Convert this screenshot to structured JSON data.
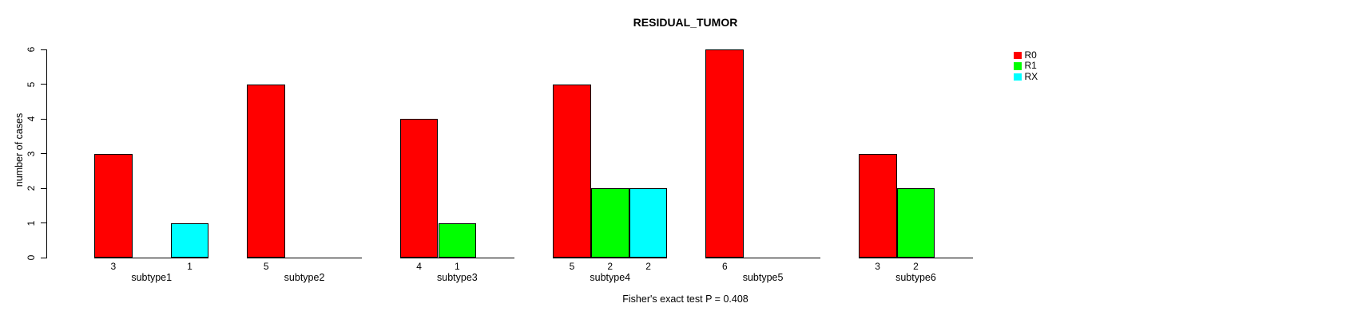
{
  "chart_data": {
    "type": "bar",
    "title": "RESIDUAL_TUMOR",
    "ylabel": "number of cases",
    "footer": "Fisher's exact test P = 0.408",
    "categories": [
      "subtype1",
      "subtype2",
      "subtype3",
      "subtype4",
      "subtype5",
      "subtype6"
    ],
    "series": [
      {
        "name": "R0",
        "color": "#FF0000",
        "values": [
          3,
          5,
          4,
          5,
          6,
          3
        ]
      },
      {
        "name": "R1",
        "color": "#00FF00",
        "values": [
          0,
          0,
          1,
          2,
          0,
          2
        ]
      },
      {
        "name": "RX",
        "color": "#00FFFF",
        "values": [
          1,
          0,
          0,
          2,
          0,
          0
        ]
      }
    ],
    "ylim": [
      0,
      6
    ],
    "yticks": [
      0,
      1,
      2,
      3,
      4,
      5,
      6
    ],
    "grid": false,
    "legend_position": "right",
    "value_labels": "nonzero bar counts shown below bars",
    "background": "#FFFFFF",
    "axis_color": "#000000",
    "text_color": "#000000"
  }
}
